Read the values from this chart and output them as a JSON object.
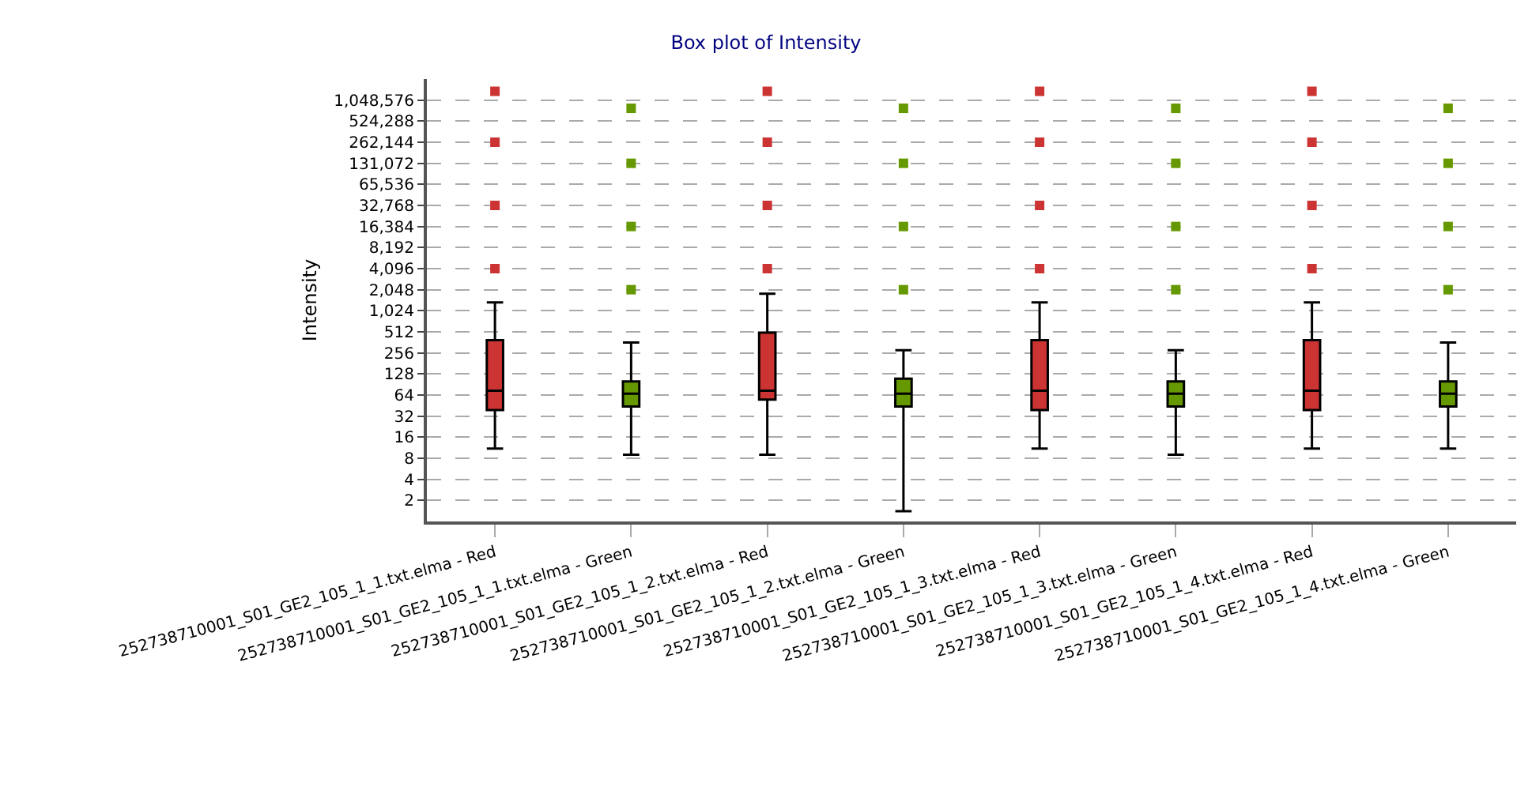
{
  "chart_data": {
    "type": "box",
    "title": "Box plot of Intensity",
    "ylabel": "Intensity",
    "categories": [
      "252738710001_S01_GE2_105_1_1.txt.elma - Red",
      "252738710001_S01_GE2_105_1_1.txt.elma - Green",
      "252738710001_S01_GE2_105_1_2.txt.elma - Red",
      "252738710001_S01_GE2_105_1_2.txt.elma - Green",
      "252738710001_S01_GE2_105_1_3.txt.elma - Red",
      "252738710001_S01_GE2_105_1_3.txt.elma - Green",
      "252738710001_S01_GE2_105_1_4.txt.elma - Red",
      "252738710001_S01_GE2_105_1_4.txt.elma - Green"
    ],
    "colors": [
      "#cc3333",
      "#669900",
      "#cc3333",
      "#669900",
      "#cc3333",
      "#669900",
      "#cc3333",
      "#669900"
    ],
    "boxes": [
      {
        "low": 11,
        "q1": 39,
        "median": 74,
        "q3": 390,
        "high": 1350,
        "outliers": [
          4096,
          32768,
          262144,
          1400000
        ]
      },
      {
        "low": 9,
        "q1": 44,
        "median": 67,
        "q3": 100,
        "high": 360,
        "outliers": [
          2048,
          16384,
          131072,
          800000
        ]
      },
      {
        "low": 9,
        "q1": 55,
        "median": 74,
        "q3": 500,
        "high": 1800,
        "outliers": [
          4096,
          32768,
          262144,
          1400000
        ]
      },
      {
        "low": 1.4,
        "q1": 44,
        "median": 67,
        "q3": 110,
        "high": 280,
        "outliers": [
          2048,
          16384,
          131072,
          800000
        ]
      },
      {
        "low": 11,
        "q1": 39,
        "median": 74,
        "q3": 390,
        "high": 1350,
        "outliers": [
          4096,
          32768,
          262144,
          1400000
        ]
      },
      {
        "low": 9,
        "q1": 44,
        "median": 67,
        "q3": 100,
        "high": 280,
        "outliers": [
          2048,
          16384,
          131072,
          800000
        ]
      },
      {
        "low": 11,
        "q1": 39,
        "median": 74,
        "q3": 390,
        "high": 1350,
        "outliers": [
          4096,
          32768,
          262144,
          1400000
        ]
      },
      {
        "low": 11,
        "q1": 44,
        "median": 67,
        "q3": 100,
        "high": 360,
        "outliers": [
          2048,
          16384,
          131072,
          800000
        ]
      }
    ],
    "log": true,
    "grid": "y",
    "ylim": [
      1,
      2097152
    ],
    "yticks": [
      2,
      4,
      8,
      16,
      32,
      64,
      128,
      256,
      512,
      {
        "value": 1024,
        "label": "1,024"
      },
      {
        "value": 2048,
        "label": "2,048"
      },
      {
        "value": 4096,
        "label": "4,096"
      },
      {
        "value": 8192,
        "label": "8,192"
      },
      {
        "value": 16384,
        "label": "16,384"
      },
      {
        "value": 32768,
        "label": "32,768"
      },
      {
        "value": 65536,
        "label": "65,536"
      },
      {
        "value": 131072,
        "label": "131,072"
      },
      {
        "value": 262144,
        "label": "262,144"
      },
      {
        "value": 524288,
        "label": "524,288"
      },
      {
        "value": 1048576,
        "label": "1,048,576"
      }
    ]
  }
}
